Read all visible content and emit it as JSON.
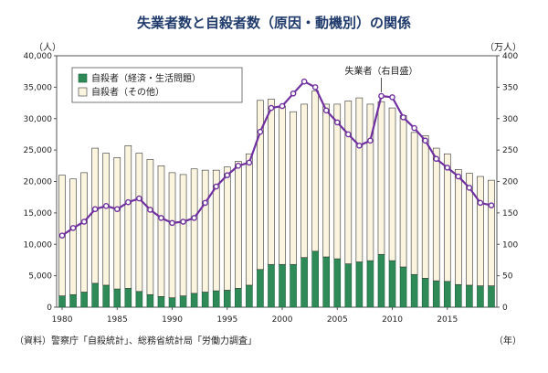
{
  "chart_data": {
    "type": "bar",
    "title": "失業者数と自殺者数（原因・動機別）の関係",
    "ylabel_left": "（人）",
    "ylabel_right": "（万人）",
    "xunit": "（年）",
    "source": "（資料）警察庁「自殺統計」、総務省統計局「労働力調査」",
    "ylim_left": [
      0,
      40000
    ],
    "ylim_right": [
      0,
      400
    ],
    "left_ticks": [
      "0",
      "5,000",
      "10,000",
      "15,000",
      "20,000",
      "25,000",
      "30,000",
      "35,000",
      "40,000"
    ],
    "right_ticks": [
      "0",
      "50",
      "100",
      "150",
      "200",
      "250",
      "300",
      "350",
      "400"
    ],
    "x": [
      1980,
      1981,
      1982,
      1983,
      1984,
      1985,
      1986,
      1987,
      1988,
      1989,
      1990,
      1991,
      1992,
      1993,
      1994,
      1995,
      1996,
      1997,
      1998,
      1999,
      2000,
      2001,
      2002,
      2003,
      2004,
      2005,
      2006,
      2007,
      2008,
      2009,
      2010,
      2011,
      2012,
      2013,
      2014,
      2015,
      2016,
      2017,
      2018,
      2019
    ],
    "x_tick_labels": [
      "1980",
      "1985",
      "1990",
      "1995",
      "2000",
      "2005",
      "2010",
      "2015"
    ],
    "series": [
      {
        "name": "自殺者（経済・生活問題）",
        "color": "#2e8b57",
        "values": [
          1800,
          2000,
          2400,
          3800,
          3500,
          2900,
          3000,
          2500,
          2000,
          1700,
          1500,
          1800,
          2200,
          2400,
          2600,
          2700,
          3000,
          3500,
          6000,
          6800,
          6800,
          6800,
          7900,
          8900,
          8000,
          7700,
          6900,
          7200,
          7400,
          8400,
          7400,
          6400,
          5200,
          4600,
          4200,
          4100,
          3600,
          3500,
          3400,
          3400
        ]
      },
      {
        "name": "自殺者（その他）",
        "color": "#fbf5e0",
        "values": [
          19200,
          18400,
          19000,
          21500,
          21000,
          20900,
          22700,
          22000,
          21500,
          20800,
          19900,
          19300,
          19800,
          19400,
          19200,
          19600,
          20200,
          20900,
          26900,
          26300,
          25200,
          24300,
          24400,
          25500,
          24300,
          24600,
          25900,
          26100,
          24900,
          24300,
          24300,
          24100,
          22600,
          22700,
          21100,
          20300,
          18300,
          17800,
          17400,
          16800
        ]
      },
      {
        "name": "失業者（右目盛）",
        "color": "#7030a0",
        "axis": "right",
        "values": [
          114,
          126,
          136,
          156,
          161,
          156,
          167,
          173,
          155,
          142,
          134,
          136,
          142,
          166,
          192,
          210,
          225,
          230,
          279,
          317,
          320,
          340,
          359,
          350,
          313,
          294,
          275,
          257,
          265,
          336,
          334,
          302,
          285,
          265,
          236,
          222,
          208,
          190,
          166,
          162
        ]
      }
    ],
    "annotation": "失業者（右目盛）"
  }
}
